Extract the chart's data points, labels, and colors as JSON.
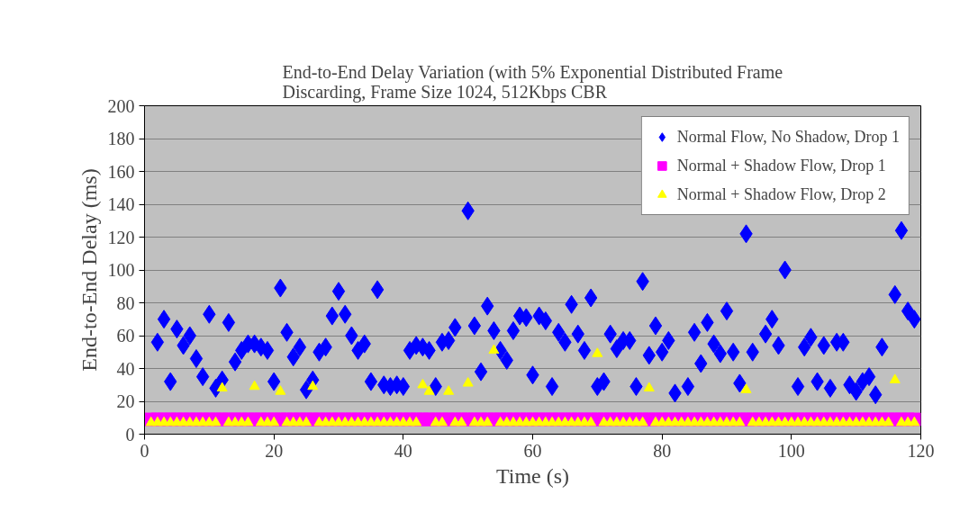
{
  "chart_data": {
    "type": "scatter",
    "title": "End-to-End Delay Variation (with 5% Exponential Distributed Frame Discarding, Frame Size 1024, 512Kbps CBR",
    "xlabel": "Time (s)",
    "ylabel": "End-to-End Delay (ms)",
    "xlim": [
      0,
      120
    ],
    "xticks": [
      0,
      20,
      40,
      60,
      80,
      100,
      120
    ],
    "ylim": [
      0,
      200
    ],
    "yticks": [
      0,
      20,
      40,
      60,
      80,
      100,
      120,
      140,
      160,
      180,
      200
    ],
    "grid": "y",
    "legend": "top right",
    "series": [
      {
        "name": "Normal Flow, No Shadow, Drop 1",
        "color": "#0000ff",
        "marker": "diamond",
        "x": [
          2,
          3,
          4,
          5,
          6,
          7,
          8,
          9,
          10,
          11,
          12,
          13,
          14,
          15,
          16,
          17,
          18,
          19,
          20,
          21,
          22,
          23,
          24,
          25,
          26,
          27,
          28,
          29,
          30,
          31,
          32,
          33,
          34,
          35,
          36,
          37,
          38,
          39,
          40,
          41,
          42,
          43,
          44,
          45,
          46,
          47,
          48,
          50,
          51,
          52,
          53,
          54,
          55,
          56,
          57,
          58,
          59,
          60,
          61,
          62,
          63,
          64,
          65,
          66,
          67,
          68,
          69,
          70,
          71,
          72,
          73,
          74,
          75,
          76,
          77,
          78,
          79,
          80,
          81,
          82,
          84,
          85,
          86,
          87,
          88,
          89,
          90,
          91,
          92,
          93,
          94,
          96,
          97,
          98,
          99,
          101,
          102,
          103,
          104,
          105,
          106,
          107,
          108,
          109,
          110,
          111,
          112,
          113,
          114,
          116,
          117,
          118,
          119
        ],
        "values": [
          56,
          70,
          32,
          64,
          54,
          60,
          46,
          35,
          73,
          28,
          33,
          68,
          44,
          51,
          55,
          55,
          53,
          51,
          32,
          89,
          62,
          47,
          53,
          27,
          33,
          50,
          53,
          72,
          87,
          73,
          60,
          51,
          55,
          32,
          88,
          30,
          29,
          30,
          29,
          51,
          54,
          53,
          51,
          29,
          56,
          57,
          65,
          136,
          66,
          38,
          78,
          63,
          51,
          45,
          63,
          72,
          71,
          36,
          72,
          69,
          29,
          62,
          56,
          79,
          61,
          51,
          83,
          29,
          32,
          61,
          52,
          57,
          57,
          29,
          93,
          48,
          66,
          50,
          57,
          25,
          29,
          62,
          43,
          68,
          55,
          49,
          75,
          50,
          31,
          122,
          50,
          61,
          70,
          54,
          100,
          29,
          53,
          59,
          32,
          54,
          28,
          56,
          56,
          30,
          26,
          32,
          35,
          24,
          53,
          85,
          124,
          75,
          70
        ]
      },
      {
        "name": "Normal + Shadow Flow, Drop 1",
        "color": "#ff00ff",
        "marker": "square",
        "x": [
          1,
          2,
          3,
          4,
          5,
          6,
          7,
          8,
          9,
          10,
          11,
          12,
          13,
          14,
          15,
          16,
          17,
          18,
          19,
          20,
          21,
          22,
          23,
          24,
          25,
          26,
          27,
          28,
          29,
          30,
          31,
          32,
          33,
          34,
          35,
          36,
          37,
          38,
          39,
          40,
          41,
          42,
          43,
          44,
          45,
          46,
          47,
          48,
          49,
          50,
          51,
          52,
          53,
          54,
          55,
          56,
          57,
          58,
          59,
          60,
          61,
          62,
          63,
          64,
          65,
          66,
          67,
          68,
          69,
          70,
          71,
          72,
          73,
          74,
          75,
          76,
          77,
          78,
          79,
          80,
          81,
          82,
          83,
          84,
          85,
          86,
          87,
          88,
          89,
          90,
          91,
          92,
          93,
          94,
          95,
          96,
          97,
          98,
          99,
          100,
          101,
          102,
          103,
          104,
          105,
          106,
          107,
          108,
          109,
          110,
          111,
          112,
          113,
          114,
          115,
          116,
          117,
          118,
          119
        ],
        "values": [
          9,
          9,
          9,
          9,
          9,
          9,
          9,
          9,
          9,
          9,
          9,
          9,
          9,
          9,
          9,
          9,
          9,
          9,
          9,
          9,
          9,
          9,
          9,
          9,
          9,
          9,
          9,
          9,
          9,
          9,
          9,
          9,
          9,
          9,
          9,
          9,
          9,
          9,
          9,
          9,
          9,
          9,
          9,
          9,
          9,
          9,
          9,
          9,
          9,
          9,
          9,
          9,
          9,
          9,
          9,
          9,
          9,
          9,
          9,
          9,
          9,
          9,
          9,
          9,
          9,
          9,
          9,
          9,
          9,
          9,
          9,
          9,
          9,
          9,
          9,
          9,
          9,
          9,
          9,
          9,
          9,
          9,
          9,
          9,
          9,
          9,
          9,
          9,
          9,
          9,
          9,
          9,
          9,
          9,
          9,
          9,
          9,
          9,
          9,
          9,
          9,
          9,
          9,
          9,
          9,
          9,
          9,
          9,
          9,
          9,
          9,
          9,
          9,
          9,
          9,
          9,
          9,
          9,
          9
        ]
      },
      {
        "name": "Normal + Shadow Flow, Drop 2",
        "color": "#ffff00",
        "marker": "triangle",
        "x": [
          1,
          2,
          3,
          4,
          5,
          6,
          7,
          8,
          9,
          10,
          11,
          12,
          13,
          14,
          15,
          16,
          17,
          18,
          19,
          20,
          21,
          22,
          23,
          24,
          25,
          26,
          27,
          28,
          29,
          30,
          31,
          32,
          33,
          34,
          35,
          36,
          37,
          38,
          39,
          40,
          41,
          42,
          43,
          44,
          45,
          46,
          47,
          48,
          49,
          50,
          51,
          52,
          53,
          54,
          55,
          56,
          57,
          58,
          59,
          60,
          61,
          62,
          63,
          64,
          65,
          66,
          67,
          68,
          69,
          70,
          71,
          72,
          73,
          74,
          75,
          76,
          77,
          78,
          79,
          80,
          81,
          82,
          83,
          84,
          85,
          86,
          87,
          88,
          89,
          90,
          91,
          92,
          93,
          94,
          95,
          96,
          97,
          98,
          99,
          100,
          101,
          102,
          103,
          104,
          105,
          106,
          107,
          108,
          109,
          110,
          111,
          112,
          113,
          114,
          115,
          116,
          117,
          118,
          119
        ],
        "values": [
          7,
          7,
          7,
          7,
          7,
          7,
          7,
          7,
          7,
          7,
          7,
          28,
          7,
          7,
          7,
          7,
          29,
          7,
          7,
          7,
          26,
          7,
          7,
          7,
          7,
          29,
          7,
          7,
          7,
          7,
          7,
          7,
          7,
          7,
          7,
          7,
          7,
          7,
          7,
          7,
          7,
          7,
          30,
          26,
          7,
          7,
          26,
          7,
          7,
          31,
          7,
          7,
          7,
          51,
          7,
          7,
          7,
          7,
          7,
          7,
          7,
          7,
          7,
          7,
          7,
          7,
          7,
          7,
          7,
          49,
          7,
          7,
          7,
          7,
          7,
          7,
          7,
          28,
          7,
          7,
          7,
          7,
          7,
          7,
          7,
          7,
          7,
          7,
          7,
          7,
          7,
          7,
          27,
          7,
          7,
          7,
          7,
          7,
          7,
          7,
          7,
          7,
          7,
          7,
          7,
          7,
          7,
          7,
          7,
          7,
          7,
          7,
          7,
          7,
          7,
          33,
          7,
          7,
          7
        ]
      }
    ]
  }
}
